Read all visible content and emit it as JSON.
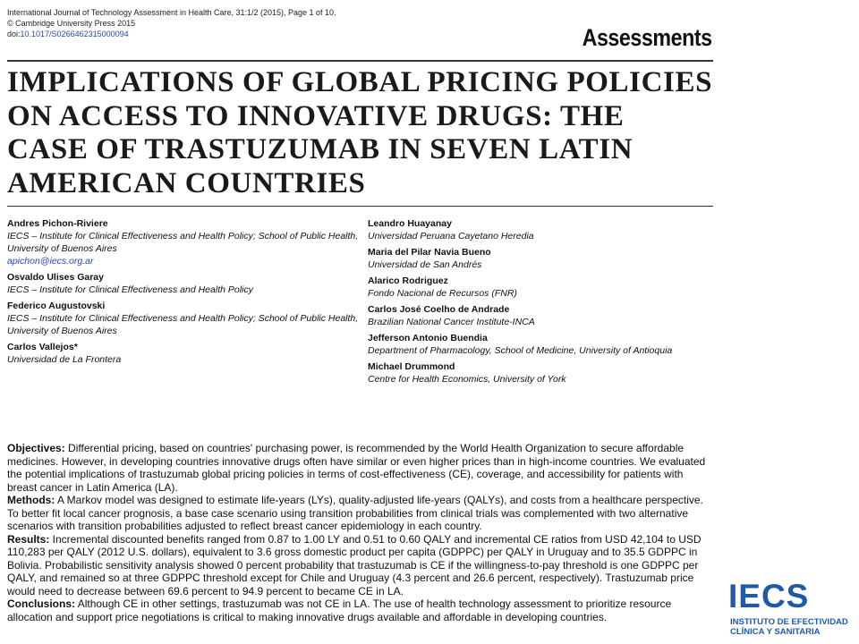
{
  "header": {
    "journal_line": "International Journal of Technology Assessment in Health Care, 31:1/2 (2015), Page 1 of 10.",
    "copyright_line": "© Cambridge University Press 2015",
    "doi_prefix": "doi:",
    "doi_value": "10.1017/S0266462315000094",
    "section": "Assessments"
  },
  "title_lines": [
    "IMPLICATIONS OF GLOBAL PRICING POLICIES",
    "ON ACCESS TO INNOVATIVE DRUGS: THE",
    "CASE OF TRASTUZUMAB IN SEVEN LATIN",
    "AMERICAN COUNTRIES"
  ],
  "authors_left": [
    {
      "name": "Andres Pichon-Riviere",
      "aff": "IECS – Institute for Clinical Effectiveness and Health Policy; School of Public Health, University of Buenos Aires",
      "email": "apichon@iecs.org.ar"
    },
    {
      "name": "Osvaldo Ulises Garay",
      "aff": "IECS – Institute for Clinical Effectiveness and Health Policy"
    },
    {
      "name": "Federico Augustovski",
      "aff": "IECS – Institute for Clinical Effectiveness and Health Policy; School of Public Health, University of Buenos Aires"
    },
    {
      "name": "Carlos Vallejos*",
      "aff": "Universidad de La Frontera"
    }
  ],
  "authors_right": [
    {
      "name": "Leandro Huayanay",
      "aff": "Universidad Peruana Cayetano Heredia"
    },
    {
      "name": "Maria del Pilar Navia Bueno",
      "aff": "Universidad de San Andrés"
    },
    {
      "name": "Alarico Rodriguez",
      "aff": "Fondo Nacional de Recursos (FNR)"
    },
    {
      "name": "Carlos José Coelho de Andrade",
      "aff": "Brazilian National Cancer Institute-INCA"
    },
    {
      "name": "Jefferson Antonio Buendia",
      "aff": "Department of Pharmacology, School of Medicine, University of Antioquia"
    },
    {
      "name": "Michael Drummond",
      "aff": "Centre for Health Economics, University of York"
    }
  ],
  "abstract": {
    "objectives_label": "Objectives:",
    "objectives_text": " Differential pricing, based on countries' purchasing power, is recommended by the World Health Organization to secure affordable medicines. However, in developing countries innovative drugs often have similar or even higher prices than in high-income countries. We evaluated the potential implications of trastuzumab global pricing policies in terms of cost-effectiveness (CE), coverage, and accessibility for patients with breast cancer in Latin America (LA).",
    "methods_label": "Methods:",
    "methods_text": " A Markov model was designed to estimate life-years (LYs), quality-adjusted life-years (QALYs), and costs from a healthcare perspective. To better fit local cancer prognosis, a base case scenario using transition probabilities from clinical trials was complemented with two alternative scenarios with transition probabilities adjusted to reflect breast cancer epidemiology in each country.",
    "results_label": "Results:",
    "results_text": " Incremental discounted benefits ranged from 0.87 to 1.00 LY and 0.51 to 0.60 QALY and incremental CE ratios from USD 42,104 to USD 110,283 per QALY (2012 U.S. dollars), equivalent to 3.6 gross domestic product per capita (GDPPC) per QALY in Uruguay and to 35.5 GDPPC in Bolivia. Probabilistic sensitivity analysis showed 0 percent probability that trastuzumab is CE if the willingness-to-pay threshold is one GDPPC per QALY, and remained so at three GDPPC threshold except for Chile and Uruguay (4.3 percent and 26.6 percent, respectively). Trastuzumab price would need to decrease between 69.6 percent to 94.9 percent to became CE in LA.",
    "conclusions_label": "Conclusions:",
    "conclusions_text": " Although CE in other settings, trastuzumab was not CE in LA. The use of health technology assessment to prioritize resource allocation and support price negotiations is critical to making innovative drugs available and affordable in developing countries."
  },
  "logo": {
    "word": "IECS",
    "sub_line1": "INSTITUTO DE EFECTIVIDAD",
    "sub_line2": "CLÍNICA Y SANITARIA",
    "color": "#1f5aa8"
  }
}
